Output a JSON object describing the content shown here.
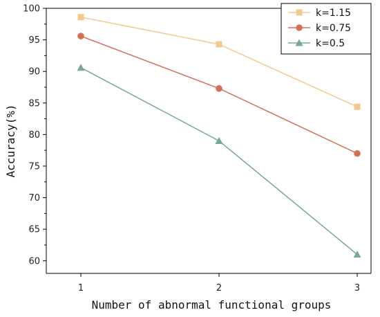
{
  "chart_data": {
    "type": "line",
    "title": "",
    "xlabel": "Number of abnormal functional groups",
    "ylabel": "Accuracy(%)",
    "x": [
      1,
      2,
      3
    ],
    "x_ticks": [
      "1",
      "2",
      "3"
    ],
    "xlim": [
      0.75,
      3.1
    ],
    "ylim": [
      58,
      100
    ],
    "y_ticks": [
      60,
      65,
      70,
      75,
      80,
      85,
      90,
      95,
      100
    ],
    "grid": false,
    "legend_position": "top-right",
    "series": [
      {
        "name": "k=1.15",
        "marker": "square",
        "color": "#f5c98d",
        "values": [
          98.6,
          94.3,
          84.4
        ]
      },
      {
        "name": "k=0.75",
        "marker": "circle",
        "color": "#d4705a",
        "values": [
          95.6,
          87.3,
          77.0
        ]
      },
      {
        "name": "k=0.5",
        "marker": "triangle",
        "color": "#76a895",
        "values": [
          90.6,
          79.0,
          61.0
        ]
      }
    ]
  }
}
